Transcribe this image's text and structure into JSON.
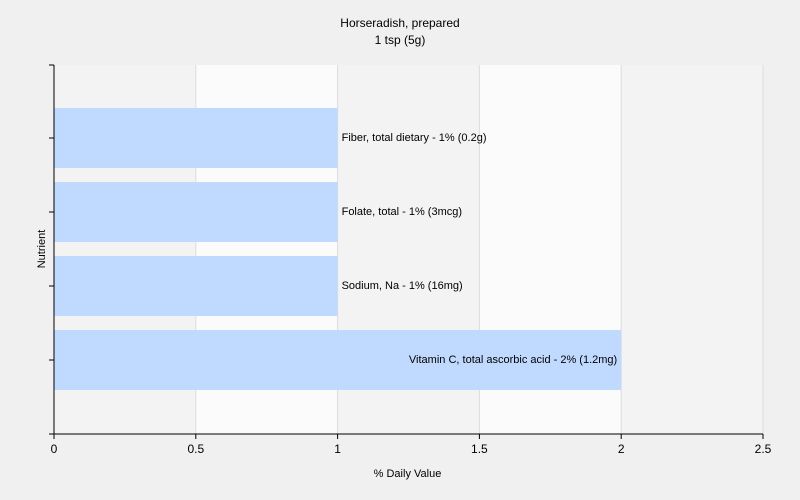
{
  "chart_data": {
    "type": "bar",
    "orientation": "horizontal",
    "title": "Horseradish, prepared",
    "subtitle": "1 tsp (5g)",
    "xlabel": "% Daily Value",
    "ylabel": "Nutrient",
    "xlim": [
      0,
      2.5
    ],
    "xticks": [
      "0",
      "0.5",
      "1",
      "1.5",
      "2",
      "2.5"
    ],
    "grid": true,
    "bar_color": "#c0daff",
    "bars": [
      {
        "category": "Fiber, total dietary",
        "value": 1,
        "label": "Fiber, total dietary - 1% (0.2g)"
      },
      {
        "category": "Folate, total",
        "value": 1,
        "label": "Folate, total - 1% (3mcg)"
      },
      {
        "category": "Sodium, Na",
        "value": 1,
        "label": "Sodium, Na - 1% (16mg)"
      },
      {
        "category": "Vitamin C, total ascorbic acid",
        "value": 2,
        "label": "Vitamin C, total ascorbic acid - 2% (1.2mg)"
      }
    ]
  }
}
